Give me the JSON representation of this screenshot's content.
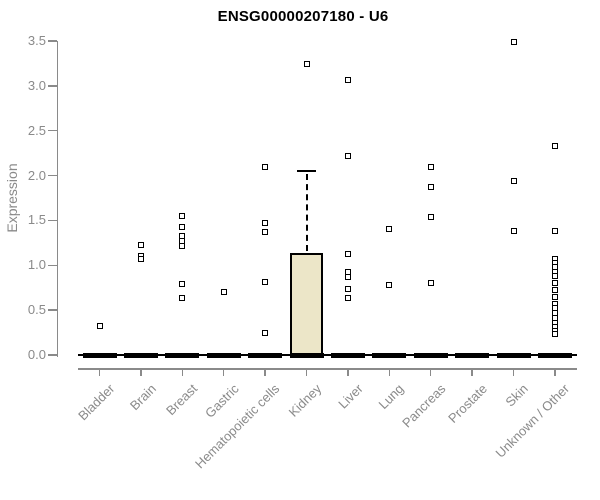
{
  "chart_data": {
    "type": "boxplot",
    "title": "ENSG00000207180 - U6",
    "ylabel": "Expression",
    "ylim": [
      0,
      3.5
    ],
    "yticks": [
      "0.0",
      "0.5",
      "1.0",
      "1.5",
      "2.0",
      "2.5",
      "3.0",
      "3.5"
    ],
    "grid": false,
    "legend": false,
    "categories": [
      "Bladder",
      "Brain",
      "Breast",
      "Gastric",
      "Hematopoietic cells",
      "Kidney",
      "Liver",
      "Lung",
      "Pancreas",
      "Prostate",
      "Skin",
      "Unknown / Other"
    ],
    "boxes": [
      {
        "category": "Bladder",
        "q1": 0,
        "median": 0,
        "q3": 0,
        "whisker_low": 0,
        "whisker_high": 0,
        "outliers": [
          0.32
        ]
      },
      {
        "category": "Brain",
        "q1": 0,
        "median": 0,
        "q3": 0,
        "whisker_low": 0,
        "whisker_high": 0,
        "outliers": [
          1.23,
          1.1,
          1.07
        ]
      },
      {
        "category": "Breast",
        "q1": 0,
        "median": 0,
        "q3": 0,
        "whisker_low": 0,
        "whisker_high": 0,
        "outliers": [
          1.55,
          1.43,
          1.33,
          1.27,
          1.21,
          0.79,
          0.64
        ]
      },
      {
        "category": "Gastric",
        "q1": 0,
        "median": 0,
        "q3": 0,
        "whisker_low": 0,
        "whisker_high": 0,
        "outliers": [
          0.7
        ]
      },
      {
        "category": "Hematopoietic cells",
        "q1": 0,
        "median": 0,
        "q3": 0,
        "whisker_low": 0,
        "whisker_high": 0,
        "outliers": [
          2.09,
          1.47,
          1.37,
          0.81,
          0.25
        ]
      },
      {
        "category": "Kidney",
        "q1": 0,
        "median": 0,
        "q3": 1.14,
        "whisker_low": 0,
        "whisker_high": 2.05,
        "outliers": [
          3.24
        ]
      },
      {
        "category": "Liver",
        "q1": 0,
        "median": 0,
        "q3": 0,
        "whisker_low": 0,
        "whisker_high": 0,
        "outliers": [
          3.06,
          2.22,
          1.13,
          0.92,
          0.87,
          0.74,
          0.63
        ]
      },
      {
        "category": "Lung",
        "q1": 0,
        "median": 0,
        "q3": 0,
        "whisker_low": 0,
        "whisker_high": 0,
        "outliers": [
          1.41,
          0.78
        ]
      },
      {
        "category": "Pancreas",
        "q1": 0,
        "median": 0,
        "q3": 0,
        "whisker_low": 0,
        "whisker_high": 0,
        "outliers": [
          2.09,
          1.87,
          1.54,
          0.8
        ]
      },
      {
        "category": "Prostate",
        "q1": 0,
        "median": 0,
        "q3": 0,
        "whisker_low": 0,
        "whisker_high": 0,
        "outliers": []
      },
      {
        "category": "Skin",
        "q1": 0,
        "median": 0,
        "q3": 0,
        "whisker_low": 0,
        "whisker_high": 0,
        "outliers": [
          3.49,
          1.94,
          1.38
        ]
      },
      {
        "category": "Unknown / Other",
        "q1": 0,
        "median": 0,
        "q3": 0,
        "whisker_low": 0,
        "whisker_high": 0,
        "outliers": [
          2.33,
          1.38,
          1.07,
          1.03,
          0.98,
          0.93,
          0.88,
          0.8,
          0.73,
          0.65,
          0.57,
          0.52,
          0.47,
          0.41,
          0.36,
          0.31,
          0.27,
          0.23
        ]
      }
    ],
    "colors": {
      "box_fill": "#ece6c8",
      "box_border": "#000000",
      "point": "#000000",
      "median": "#000000",
      "axis": "#8a8a8a",
      "tick_label": "#8a8a8a",
      "title": "#000000",
      "background": "#ffffff"
    }
  }
}
